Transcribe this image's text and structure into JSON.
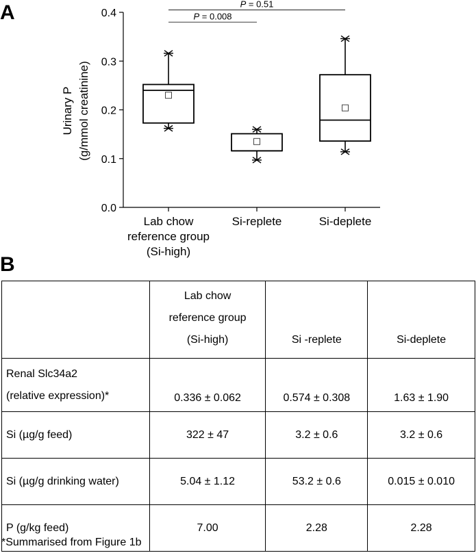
{
  "panel_a": {
    "letter": "A",
    "ylabel_line1": "Urinary P",
    "ylabel_line2": "(g/mmol creatinine)",
    "annotations": [
      {
        "text_p": "P",
        "text_rest": " = 0.008",
        "from": 0,
        "to": 1,
        "y": 0.38
      },
      {
        "text_p": "P",
        "text_rest": " = 0.51",
        "from": 0,
        "to": 2,
        "y": 0.405
      }
    ]
  },
  "chart_data": {
    "type": "box",
    "ylim": [
      0.0,
      0.4
    ],
    "yticks": [
      "0.0",
      "0.1",
      "0.2",
      "0.3",
      "0.4"
    ],
    "ytick_values": [
      0.0,
      0.1,
      0.2,
      0.3,
      0.4
    ],
    "categories": [
      "Lab chow reference group (Si-high)",
      "Si-replete",
      "Si-deplete"
    ],
    "category_lines": [
      [
        "Lab chow",
        "reference group",
        "(Si-high)"
      ],
      [
        "Si-replete"
      ],
      [
        "Si-deplete"
      ]
    ],
    "boxes": [
      {
        "whisker_low": 0.162,
        "q1": 0.173,
        "median": 0.24,
        "q3": 0.252,
        "whisker_high": 0.316,
        "mean": 0.23
      },
      {
        "whisker_low": 0.097,
        "q1": 0.116,
        "median": 0.116,
        "q3": 0.151,
        "whisker_high": 0.16,
        "mean": 0.135
      },
      {
        "whisker_low": 0.114,
        "q1": 0.136,
        "median": 0.179,
        "q3": 0.272,
        "whisker_high": 0.346,
        "mean": 0.204
      }
    ]
  },
  "panel_b": {
    "letter": "B",
    "header": [
      "",
      "Lab chow reference group (Si-high)",
      "Si -replete",
      "Si-deplete"
    ],
    "header_lines": [
      "Lab chow",
      "reference group",
      "(Si-high)"
    ],
    "rows": [
      {
        "label_line1": "Renal Slc34a2",
        "label_line2": "(relative expression)*",
        "values": [
          "0.336 ± 0.062",
          "0.574 ± 0.308",
          "1.63 ± 1.90"
        ]
      },
      {
        "label": "Si (µg/g feed)",
        "values": [
          "322 ± 47",
          "3.2 ± 0.6",
          "3.2 ± 0.6"
        ]
      },
      {
        "label": "Si (µg/g drinking water)",
        "values": [
          "5.04 ± 1.12",
          "53.2 ± 0.6",
          "0.015 ± 0.010"
        ]
      },
      {
        "label": "P (g/kg feed)",
        "values": [
          "7.00",
          "2.28",
          "2.28"
        ]
      }
    ],
    "footnote": "*Summarised from Figure 1b"
  }
}
